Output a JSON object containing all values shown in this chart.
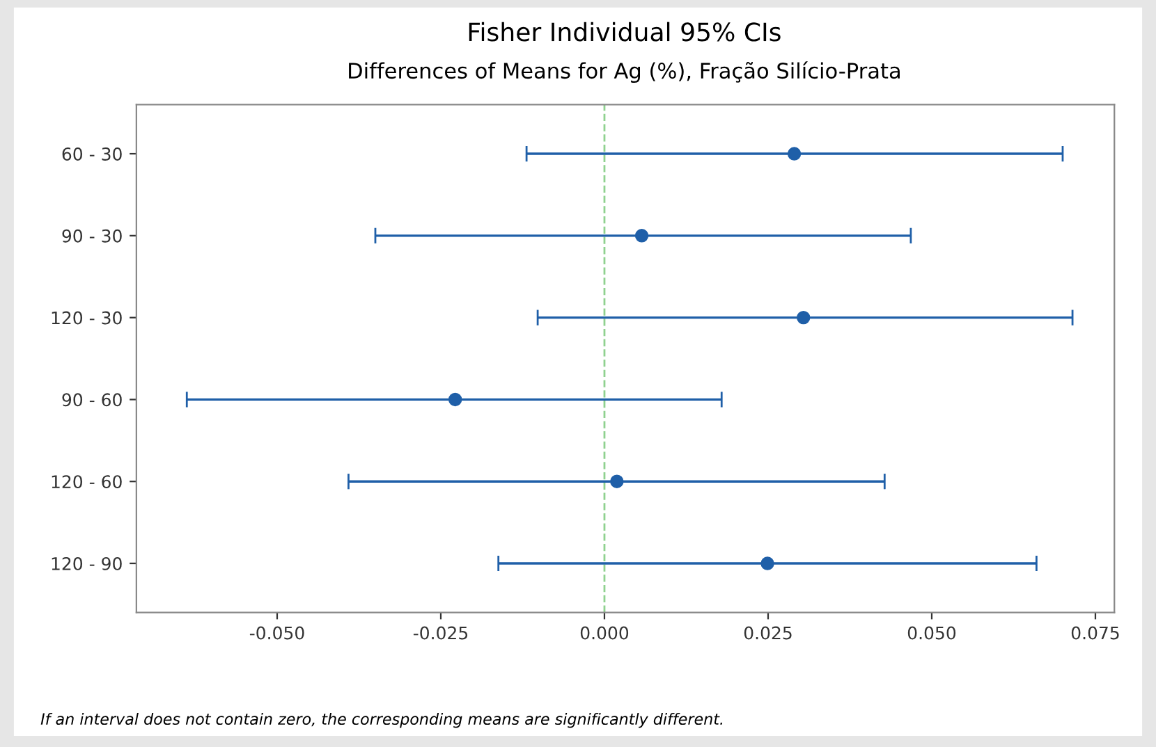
{
  "chart_data": {
    "type": "scatter",
    "orientation": "horizontal",
    "title": "Fisher Individual 95% CIs",
    "subtitle": "Differences of Means for Ag (%), Fração Silício-Prata",
    "categories": [
      "60 - 30",
      "90 - 30",
      "120 - 30",
      "90 - 60",
      "120 - 60",
      "120 - 90"
    ],
    "series": [
      {
        "color": "#1f5fa8",
        "values": [
          0.029,
          0.0057,
          0.0304,
          -0.0228,
          0.0019,
          0.0249
        ],
        "errors": [
          [
            -0.0119,
            0.07
          ],
          [
            -0.035,
            0.0468
          ],
          [
            -0.0102,
            0.0715
          ],
          [
            -0.0638,
            0.0179
          ],
          [
            -0.0391,
            0.0428
          ],
          [
            -0.0162,
            0.066
          ]
        ]
      }
    ],
    "marker": "circle",
    "xlim": [
      -0.0715,
      0.0779
    ],
    "xticks": [
      {
        "value": -0.05,
        "label": "-0.050"
      },
      {
        "value": -0.025,
        "label": "-0.025"
      },
      {
        "value": 0,
        "label": "0.000"
      },
      {
        "value": 0.025,
        "label": "0.025"
      },
      {
        "value": 0.05,
        "label": "0.050"
      },
      {
        "value": 0.075,
        "label": "0.075"
      }
    ],
    "ref_lines": [
      {
        "axis": "x",
        "value": 0,
        "color": "#8fd18f",
        "line_style": "dashed"
      }
    ],
    "annotations": [
      "If an interval does not contain zero, the corresponding means are significantly different."
    ],
    "grid": false,
    "legend": false
  }
}
